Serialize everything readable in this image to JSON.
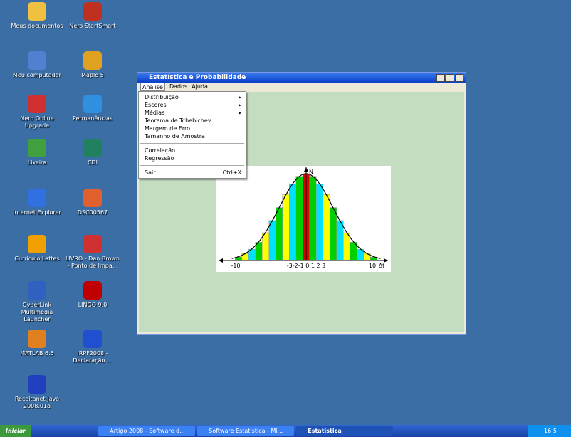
{
  "desktop": {
    "icons": [
      {
        "label": "Meus documentos"
      },
      {
        "label": "Nero StartSmart"
      },
      {
        "label": "Meu computador"
      },
      {
        "label": "Maple 5"
      },
      {
        "label": "Nero Online Upgrade"
      },
      {
        "label": "Permanências"
      },
      {
        "label": "Lixeira"
      },
      {
        "label": "CDI"
      },
      {
        "label": "Internet Explorer"
      },
      {
        "label": "DSC00567"
      },
      {
        "label": "Curriculo Lattes"
      },
      {
        "label": "LIVRO - Dan Brown - Ponto de Impa..."
      },
      {
        "label": "CyberLink Multimedia Launcher"
      },
      {
        "label": "LINGO 9.0"
      },
      {
        "label": "MATLAB 6.5"
      },
      {
        "label": "IRPF2008 - Declaração ..."
      },
      {
        "label": "Receitanet Java 2008.01a"
      }
    ]
  },
  "window": {
    "title": "Estatística e Probabilidade",
    "menu": [
      "Analise",
      "Dados",
      "Ajuda"
    ],
    "dropdown": [
      {
        "label": "Distribuição",
        "submenu": true
      },
      {
        "label": "Escores",
        "submenu": true
      },
      {
        "label": "Médias",
        "submenu": true
      },
      {
        "label": "Teorema de Tchebichev"
      },
      {
        "label": "Margem de Erro"
      },
      {
        "label": "Tamanho de Amostra"
      },
      {
        "label": "Correlação",
        "separator_before": true
      },
      {
        "label": "Regressão"
      },
      {
        "label": "Sair",
        "shortcut": "Ctrl+X",
        "separator_before": true
      }
    ],
    "figure": {
      "y_label": "N",
      "x_label": "Δt",
      "x_tick_labels": [
        "-10",
        "-3-2-1 0 1 2 3",
        "10"
      ],
      "bars": [
        4,
        8,
        13,
        21,
        32,
        46,
        61,
        76,
        88,
        97,
        100,
        97,
        88,
        76,
        61,
        46,
        32,
        21,
        13,
        8,
        4
      ],
      "bar_colors": [
        "#00d000",
        "#ffff00",
        "#00e0ff",
        "#00d000",
        "#ffff00",
        "#00e0ff",
        "#00d000",
        "#ffff00",
        "#00e0ff",
        "#00d000",
        "#e00000",
        "#00d000",
        "#00e0ff",
        "#ffff00",
        "#00d000",
        "#00e0ff",
        "#ffff00",
        "#00d000",
        "#00e0ff",
        "#ffff00",
        "#00d000"
      ]
    }
  },
  "taskbar": {
    "start": "Iniciar",
    "tasks": [
      "Artigo 2008 - Software d...",
      "Software Estatística - Mi...",
      "Estatística"
    ],
    "clock": "16:5"
  }
}
